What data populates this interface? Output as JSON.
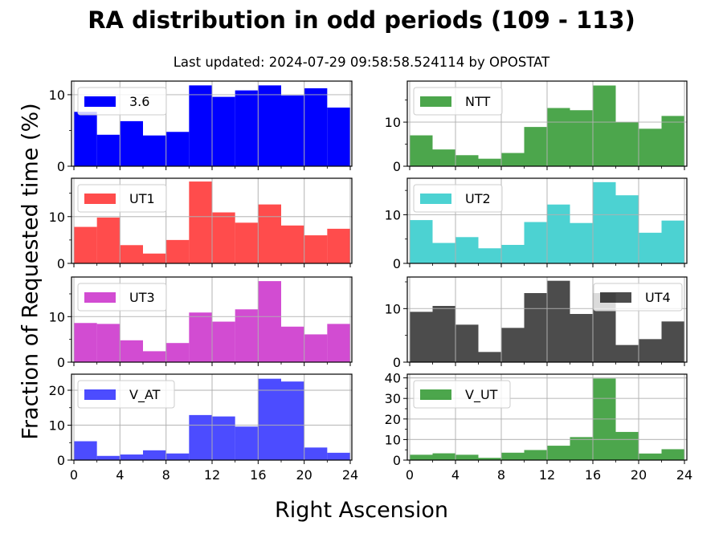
{
  "title": "RA distribution in odd periods (109 - 113)",
  "subtitle": "Last updated: 2024-07-29 09:58:58.524114 by OPOSTAT",
  "chart_data": {
    "type": "bar",
    "title": "RA distribution in odd periods (109 - 113)",
    "subtitle": "Last updated: 2024-07-29 09:58:58.524114 by OPOSTAT",
    "xlabel": "Right Ascension",
    "ylabel": "Fraction of Requested time (%)",
    "bin_edges": [
      0,
      2,
      4,
      6,
      8,
      10,
      12,
      14,
      16,
      18,
      20,
      22,
      24
    ],
    "xlim": [
      0,
      24
    ],
    "xticks": [
      "0",
      "4",
      "8",
      "12",
      "16",
      "20",
      "24"
    ],
    "grid": true,
    "panels": [
      {
        "name": "3.6",
        "color": "#0000ff",
        "opacity": 1.0,
        "legend": "top-left",
        "ylim": [
          0,
          11.9
        ],
        "yticks": [
          0,
          10
        ],
        "minor_yticks": [
          5
        ],
        "values": [
          7.6,
          4.4,
          6.3,
          4.3,
          4.8,
          11.3,
          9.7,
          10.6,
          11.3,
          9.9,
          10.9,
          8.2
        ]
      },
      {
        "name": "NTT",
        "color": "#008000",
        "opacity": 0.7,
        "legend": "top-left",
        "ylim": [
          0,
          19.3
        ],
        "yticks": [
          0,
          10
        ],
        "minor_yticks": [
          5,
          15
        ],
        "values": [
          7.0,
          3.8,
          2.5,
          1.7,
          3.0,
          8.9,
          13.2,
          12.7,
          18.3,
          10.0,
          8.5,
          11.4
        ]
      },
      {
        "name": "UT1",
        "color": "#ff0000",
        "opacity": 0.7,
        "legend": "top-left",
        "ylim": [
          0,
          18.2
        ],
        "yticks": [
          0,
          10
        ],
        "minor_yticks": [
          5,
          15
        ],
        "values": [
          7.8,
          9.8,
          3.9,
          2.1,
          5.0,
          17.5,
          10.9,
          8.7,
          12.6,
          8.1,
          6.0,
          7.4
        ]
      },
      {
        "name": "UT2",
        "color": "#00bfbf",
        "opacity": 0.7,
        "legend": "top-left",
        "ylim": [
          0,
          17.5
        ],
        "yticks": [
          0,
          10
        ],
        "minor_yticks": [
          5,
          15
        ],
        "values": [
          8.9,
          4.2,
          5.4,
          3.1,
          3.8,
          8.5,
          12.1,
          8.3,
          16.7,
          14.0,
          6.3,
          8.8
        ]
      },
      {
        "name": "UT3",
        "color": "#bf00bf",
        "opacity": 0.7,
        "legend": "top-left",
        "ylim": [
          0,
          18.7
        ],
        "yticks": [
          0,
          10
        ],
        "minor_yticks": [
          5,
          15
        ],
        "values": [
          8.6,
          8.4,
          4.8,
          2.4,
          4.2,
          10.9,
          8.9,
          11.6,
          17.8,
          7.8,
          6.1,
          8.4
        ]
      },
      {
        "name": "UT4",
        "color": "#000000",
        "opacity": 0.7,
        "legend": "top-right",
        "ylim": [
          0,
          15.9
        ],
        "yticks": [
          0,
          10
        ],
        "minor_yticks": [
          5,
          15
        ],
        "values": [
          9.4,
          10.5,
          7.0,
          1.9,
          6.4,
          12.9,
          15.2,
          9.0,
          12.9,
          3.2,
          4.3,
          7.6
        ]
      },
      {
        "name": "V_AT",
        "color": "#0000ff",
        "opacity": 0.7,
        "legend": "top-left",
        "ylim": [
          0,
          24.6
        ],
        "yticks": [
          0,
          10,
          20
        ],
        "minor_yticks": [
          5,
          15
        ],
        "values": [
          5.4,
          1.2,
          1.6,
          2.8,
          1.9,
          12.9,
          12.5,
          9.6,
          23.3,
          22.5,
          3.6,
          2.1
        ]
      },
      {
        "name": "V_UT",
        "color": "#008000",
        "opacity": 0.7,
        "legend": "top-left",
        "ylim": [
          0,
          41.8
        ],
        "yticks": [
          0,
          10,
          20,
          30,
          40
        ],
        "minor_yticks": [
          5,
          15,
          25,
          35
        ],
        "values": [
          2.6,
          3.3,
          2.6,
          1.1,
          3.6,
          4.9,
          7.0,
          11.2,
          39.7,
          13.7,
          3.2,
          5.3
        ]
      }
    ]
  }
}
